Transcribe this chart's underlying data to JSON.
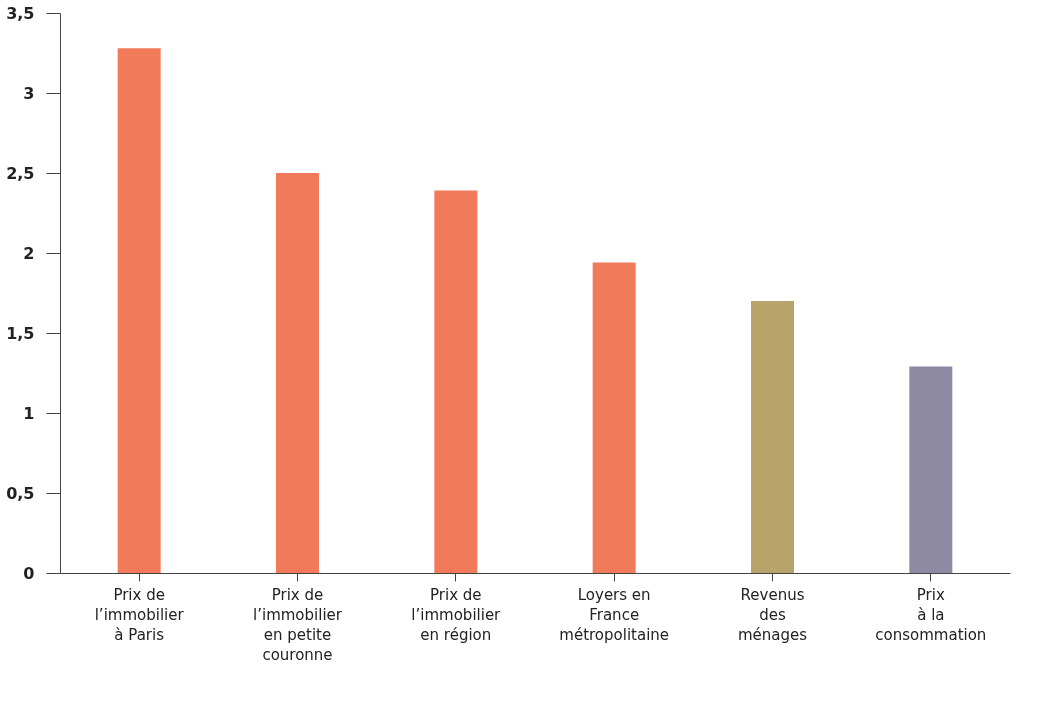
{
  "chart_data": {
    "type": "bar",
    "categories": [
      "Prix de\nl’immobilier\nà Paris",
      "Prix de\nl’immobilier\nen petite\ncouronne",
      "Prix de\nl’immobilier\nen région",
      "Loyers en\nFrance\nmétropolitaine",
      "Revenus\ndes\nménages",
      "Prix\nà la\nconsommation"
    ],
    "values": [
      3.28,
      2.5,
      2.39,
      1.94,
      1.7,
      1.29
    ],
    "colors": [
      "#f07a5a",
      "#f07a5a",
      "#f07a5a",
      "#f07a5a",
      "#b8a36a",
      "#8e8aa3"
    ],
    "ylim": [
      0,
      3.5
    ],
    "yticks": [
      0,
      {
        "value": 0.5,
        "label": "0,5"
      },
      1,
      {
        "value": 1.5,
        "label": "1,5"
      },
      2,
      {
        "value": 2.5,
        "label": "2,5"
      },
      3,
      {
        "value": 3.5,
        "label": "3,5"
      }
    ],
    "grid": false
  }
}
